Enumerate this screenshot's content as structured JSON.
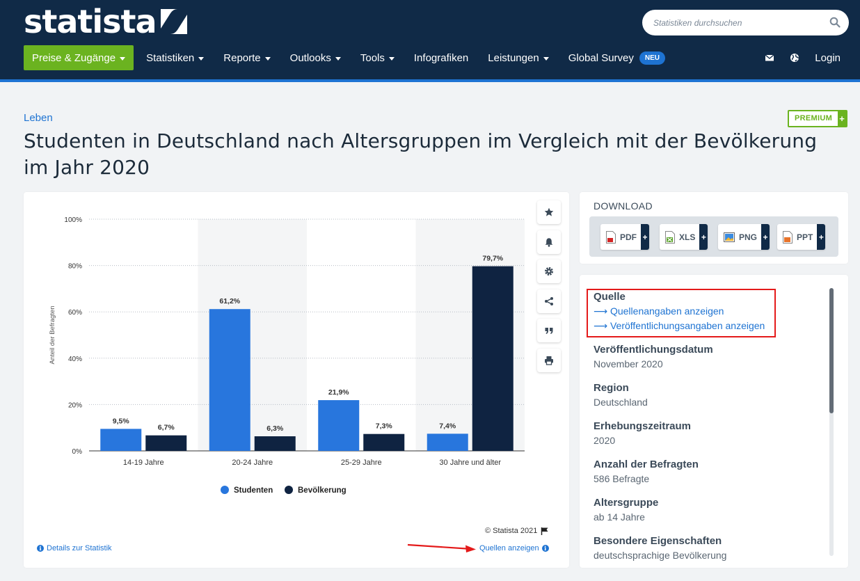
{
  "header": {
    "logo_text": "statista",
    "search_placeholder": "Statistiken durchsuchen",
    "nav": {
      "primary": "Preise & Zugänge",
      "items": [
        "Statistiken",
        "Reporte",
        "Outlooks",
        "Tools",
        "Infografiken",
        "Leistungen",
        "Global Survey"
      ],
      "badge": "NEU"
    },
    "login": "Login"
  },
  "breadcrumb": "Leben",
  "premium_label": "PREMIUM",
  "premium_plus": "+",
  "title": "Studenten in Deutschland nach Altersgruppen im Vergleich mit der Bevölkerung im Jahr 2020",
  "chart_data": {
    "type": "bar",
    "categories": [
      "14-19 Jahre",
      "20-24 Jahre",
      "25-29 Jahre",
      "30 Jahre und älter"
    ],
    "series": [
      {
        "name": "Studenten",
        "values": [
          9.5,
          61.2,
          21.9,
          7.4
        ],
        "labels": [
          "9,5%",
          "61,2%",
          "21,9%",
          "7,4%"
        ],
        "color": "#2876dd"
      },
      {
        "name": "Bevölkerung",
        "values": [
          6.7,
          6.3,
          7.3,
          79.7
        ],
        "labels": [
          "6,7%",
          "6,3%",
          "7,3%",
          "79,7%"
        ],
        "color": "#0f2341"
      }
    ],
    "ylabel": "Anteil der Befragten",
    "ylim": [
      0,
      100
    ],
    "yticks": [
      "0%",
      "20%",
      "40%",
      "60%",
      "80%",
      "100%"
    ],
    "grid": true,
    "legend": "bottom"
  },
  "chart_footer": {
    "copyright": "© Statista 2021",
    "details_link": "Details zur Statistik",
    "sources_link": "Quellen anzeigen"
  },
  "download": {
    "title": "DOWNLOAD",
    "buttons": [
      "PDF",
      "XLS",
      "PNG",
      "PPT"
    ],
    "plus": "+"
  },
  "info": {
    "source_title": "Quelle",
    "source_links": [
      "Quellenangaben anzeigen",
      "Veröffentlichungsangaben anzeigen"
    ],
    "fields": [
      {
        "label": "Veröffentlichungsdatum",
        "value": "November 2020"
      },
      {
        "label": "Region",
        "value": "Deutschland"
      },
      {
        "label": "Erhebungszeitraum",
        "value": "2020"
      },
      {
        "label": "Anzahl der Befragten",
        "value": "586 Befragte"
      },
      {
        "label": "Altersgruppe",
        "value": "ab 14 Jahre"
      },
      {
        "label": "Besondere Eigenschaften",
        "value": "deutschsprachige Bevölkerung"
      }
    ]
  }
}
